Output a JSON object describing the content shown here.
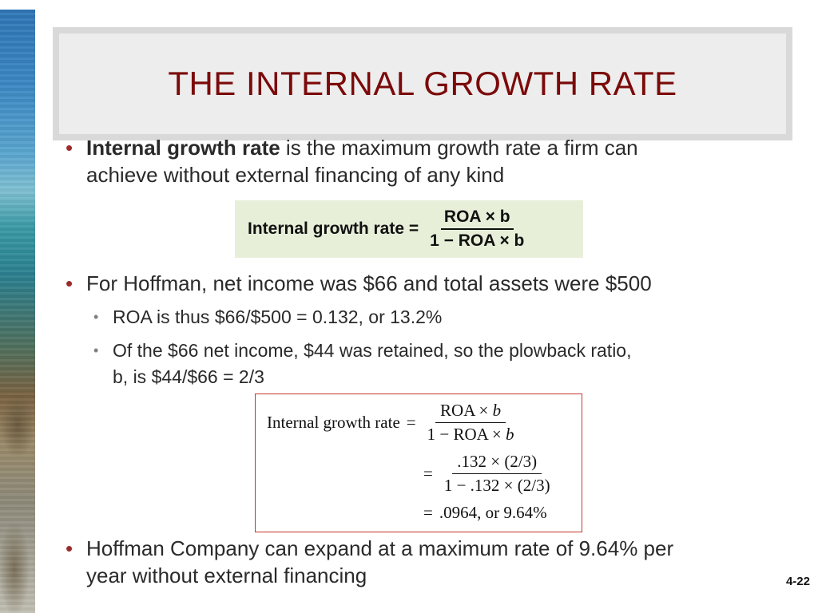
{
  "slide": {
    "title": "THE INTERNAL GROWTH RATE",
    "page_number": "4-22"
  },
  "bullets": {
    "b1": {
      "bold": "Internal growth rate",
      "rest_line1": " is the maximum growth rate a firm can",
      "line2": "achieve without external financing of any kind"
    },
    "b2": {
      "text": "For Hoffman, net income was $66 and total assets were $500",
      "sub1": "ROA is thus $66/$500 = 0.132, or 13.2%",
      "sub2_line1": "Of the $66 net income, $44 was retained, so the plowback ratio,",
      "sub2_line2": "b, is $44/$66 = 2/3"
    },
    "b3": {
      "line1": "Hoffman Company can expand at a maximum rate of 9.64% per",
      "line2": "year without external financing"
    }
  },
  "formula1": {
    "lhs": "Internal growth rate =",
    "num": "ROA × b",
    "den": "1 − ROA × b"
  },
  "formula2": {
    "lhs": "Internal growth rate",
    "eq": "=",
    "num1_a": "ROA × ",
    "num1_b": "b",
    "den1_a": "1 − ROA × ",
    "den1_b": "b",
    "num2": ".132 × (2/3)",
    "den2": "1 − .132 × (2/3)",
    "result": ".0964, or 9.64%"
  },
  "colors": {
    "title": "#7b0a0a",
    "bullet_dot": "#9b2c2c",
    "formula1_bg": "#e7efd9",
    "formula2_border": "#c0392b"
  }
}
